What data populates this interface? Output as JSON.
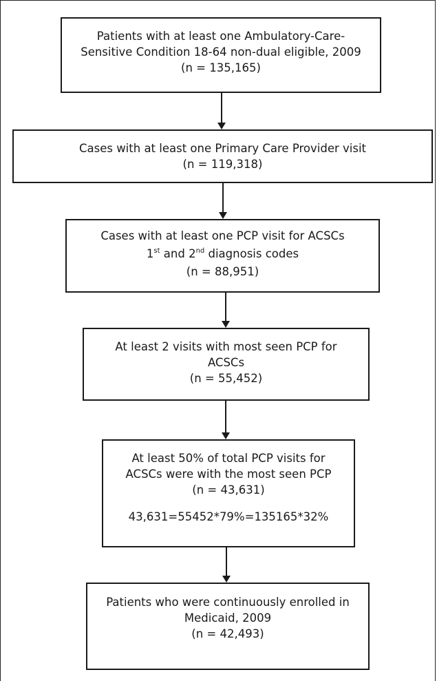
{
  "flowchart": {
    "steps": [
      {
        "lines": [
          "Patients with at least one Ambulatory-Care-",
          "Sensitive Condition 18-64 non-dual eligible, 2009",
          "(n = 135,165)"
        ]
      },
      {
        "lines": [
          "Cases with at least one Primary Care Provider visit",
          "(n = 119,318)"
        ]
      },
      {
        "line1": "Cases with at least one PCP visit for ACSCs",
        "line2_a": "1",
        "line2_a_sup": "st",
        "line2_b": " and 2",
        "line2_b_sup": "nd",
        "line2_c": " diagnosis codes",
        "line3": "(n = 88,951)"
      },
      {
        "lines": [
          "At least 2 visits with most seen PCP for",
          "ACSCs",
          "(n = 55,452)"
        ]
      },
      {
        "lines": [
          "At least 50% of total PCP visits for",
          "ACSCs were with the most seen PCP",
          "(n = 43,631)"
        ],
        "note": "43,631=55452*79%=135165*32%"
      },
      {
        "lines": [
          "Patients who were continuously enrolled in",
          "Medicaid, 2009",
          "(n = 42,493)"
        ]
      }
    ]
  }
}
